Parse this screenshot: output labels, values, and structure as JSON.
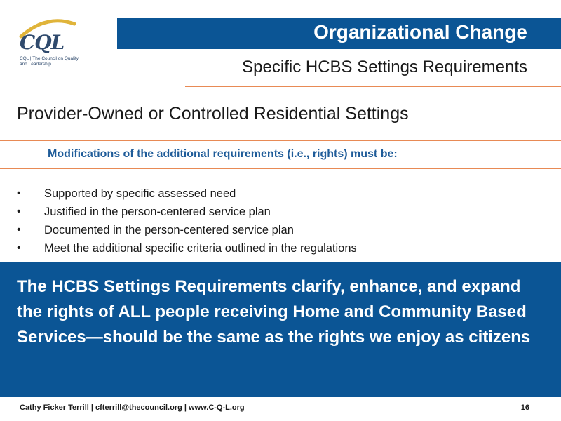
{
  "logo": {
    "wordmark": "CQL",
    "tagline": "CQL | The Council on Quality and Leadership"
  },
  "header": {
    "title": "Organizational Change",
    "subtitle": "Specific HCBS Settings Requirements"
  },
  "section": {
    "heading": "Provider-Owned or Controlled Residential Settings",
    "modifications_heading": "Modifications of the additional requirements (i.e., rights) must be:"
  },
  "bullets": [
    "Supported by specific assessed need",
    "Justified in the person-centered service plan",
    "Documented in the person-centered service plan",
    "Meet the additional specific criteria outlined in the regulations"
  ],
  "callout": {
    "text": "The HCBS Settings Requirements clarify, enhance, and expand the rights of ALL people receiving Home and Community Based Services—should be the same as the rights we enjoy as citizens"
  },
  "footer": {
    "contact": "Cathy Ficker Terrill | cfterrill@thecouncil.org | www.C-Q-L.org",
    "page_number": "16"
  },
  "colors": {
    "primary_blue": "#0b5595",
    "heading_blue": "#1f5c99",
    "accent_orange": "#e88a55",
    "logo_gold": "#e0b43a"
  }
}
